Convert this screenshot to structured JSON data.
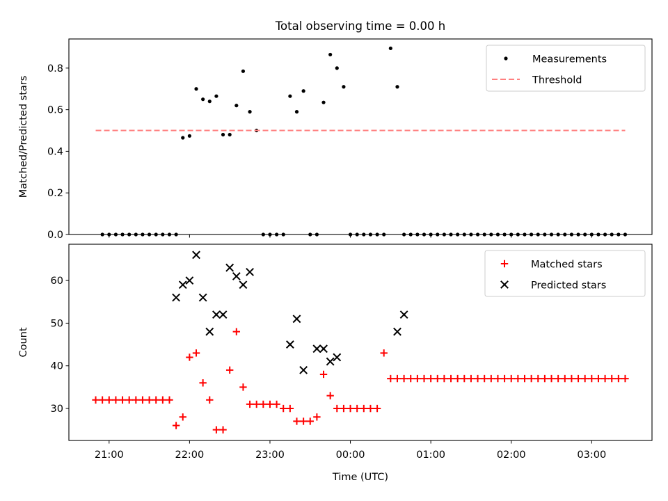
{
  "title": "Total observing time = 0.00 h",
  "chart_data": [
    {
      "type": "scatter",
      "panel": "top",
      "ylabel": "Matched/Predicted stars",
      "ylim": [
        0,
        0.94
      ],
      "yticks": [
        0.0,
        0.2,
        0.4,
        0.6,
        0.8
      ],
      "ytick_labels": [
        "0.0",
        "0.2",
        "0.4",
        "0.6",
        "0.8"
      ],
      "legend": {
        "position": "top-right",
        "entries": [
          {
            "label": "Measurements",
            "series": "measurements"
          },
          {
            "label": "Threshold",
            "series": "threshold"
          }
        ]
      },
      "series": [
        {
          "name": "Measurements",
          "key": "measurements",
          "style": "dot",
          "color": "#000000",
          "x": [
            "20:55",
            "21:00",
            "21:05",
            "21:10",
            "21:15",
            "21:20",
            "21:25",
            "21:30",
            "21:35",
            "21:40",
            "21:45",
            "21:50",
            "21:55",
            "22:00",
            "22:05",
            "22:10",
            "22:15",
            "22:20",
            "22:25",
            "22:30",
            "22:35",
            "22:40",
            "22:45",
            "22:50",
            "22:55",
            "23:00",
            "23:05",
            "23:10",
            "23:15",
            "23:20",
            "23:25",
            "23:30",
            "23:35",
            "23:40",
            "23:45",
            "23:50",
            "23:55",
            "00:00",
            "00:05",
            "00:10",
            "00:15",
            "00:20",
            "00:25",
            "00:30",
            "00:35",
            "00:40",
            "00:45",
            "00:50",
            "00:55",
            "01:00",
            "01:05",
            "01:10",
            "01:15",
            "01:20",
            "01:25",
            "01:30",
            "01:35",
            "01:40",
            "01:45",
            "01:50",
            "01:55",
            "02:00",
            "02:05",
            "02:10",
            "02:15",
            "02:20",
            "02:25",
            "02:30",
            "02:35",
            "02:40",
            "02:45",
            "02:50",
            "02:55",
            "03:00",
            "03:05",
            "03:10",
            "03:15",
            "03:20",
            "03:25"
          ],
          "y": [
            0,
            0,
            0,
            0,
            0,
            0,
            0,
            0,
            0,
            0,
            0,
            0,
            0.465,
            0.474,
            0.7,
            0.65,
            0.64,
            0.665,
            0.48,
            0.48,
            0.62,
            0.785,
            0.59,
            0.5,
            0,
            0,
            0,
            0,
            0.665,
            0.59,
            0.69,
            0,
            0,
            0.635,
            0.865,
            0.8,
            0.71,
            0,
            0,
            0,
            0,
            0,
            0,
            0.895,
            0.71,
            0,
            0,
            0,
            0,
            0,
            0,
            0,
            0,
            0,
            0,
            0,
            0,
            0,
            0,
            0,
            0,
            0,
            0,
            0,
            0,
            0,
            0,
            0,
            0,
            0,
            0,
            0,
            0,
            0,
            0,
            0,
            0,
            0,
            0
          ]
        },
        {
          "name": "Threshold",
          "key": "threshold",
          "style": "dashed-line",
          "color": "#ff8080",
          "x": [
            "20:50",
            "03:25"
          ],
          "y": [
            0.5,
            0.5
          ]
        }
      ]
    },
    {
      "type": "scatter",
      "panel": "bottom",
      "ylabel": "Count",
      "xlabel": "Time (UTC)",
      "ylim": [
        22.5,
        68.5
      ],
      "yticks": [
        30,
        40,
        50,
        60
      ],
      "ytick_labels": [
        "30",
        "40",
        "50",
        "60"
      ],
      "xlim": [
        "20:30",
        "03:45"
      ],
      "xticks": [
        "21:00",
        "22:00",
        "23:00",
        "00:00",
        "01:00",
        "02:00",
        "03:00"
      ],
      "xtick_labels": [
        "21:00",
        "22:00",
        "23:00",
        "00:00",
        "01:00",
        "02:00",
        "03:00"
      ],
      "legend": {
        "position": "top-right",
        "entries": [
          {
            "label": "Matched stars",
            "series": "matched"
          },
          {
            "label": "Predicted stars",
            "series": "predicted"
          }
        ]
      },
      "series": [
        {
          "name": "Matched stars",
          "key": "matched",
          "style": "plus",
          "color": "#ff0000",
          "x": [
            "20:50",
            "20:55",
            "21:00",
            "21:05",
            "21:10",
            "21:15",
            "21:20",
            "21:25",
            "21:30",
            "21:35",
            "21:40",
            "21:45",
            "21:50",
            "21:55",
            "22:00",
            "22:05",
            "22:10",
            "22:15",
            "22:20",
            "22:25",
            "22:30",
            "22:35",
            "22:40",
            "22:45",
            "22:50",
            "22:55",
            "23:00",
            "23:05",
            "23:10",
            "23:15",
            "23:20",
            "23:25",
            "23:30",
            "23:35",
            "23:40",
            "23:45",
            "23:50",
            "23:55",
            "00:00",
            "00:05",
            "00:10",
            "00:15",
            "00:20",
            "00:25",
            "00:30",
            "00:35",
            "00:40",
            "00:45",
            "00:50",
            "00:55",
            "01:00",
            "01:05",
            "01:10",
            "01:15",
            "01:20",
            "01:25",
            "01:30",
            "01:35",
            "01:40",
            "01:45",
            "01:50",
            "01:55",
            "02:00",
            "02:05",
            "02:10",
            "02:15",
            "02:20",
            "02:25",
            "02:30",
            "02:35",
            "02:40",
            "02:45",
            "02:50",
            "02:55",
            "03:00",
            "03:05",
            "03:10",
            "03:15",
            "03:20",
            "03:25"
          ],
          "y": [
            32,
            32,
            32,
            32,
            32,
            32,
            32,
            32,
            32,
            32,
            32,
            32,
            26,
            28,
            42,
            43,
            36,
            32,
            25,
            25,
            39,
            48,
            35,
            31,
            31,
            31,
            31,
            31,
            30,
            30,
            27,
            27,
            27,
            28,
            38,
            33,
            30,
            30,
            30,
            30,
            30,
            30,
            30,
            43,
            37,
            37,
            37,
            37,
            37,
            37,
            37,
            37,
            37,
            37,
            37,
            37,
            37,
            37,
            37,
            37,
            37,
            37,
            37,
            37,
            37,
            37,
            37,
            37,
            37,
            37,
            37,
            37,
            37,
            37,
            37,
            37,
            37,
            37,
            37,
            37
          ]
        },
        {
          "name": "Predicted stars",
          "key": "predicted",
          "style": "x",
          "color": "#000000",
          "x": [
            "21:50",
            "21:55",
            "22:00",
            "22:05",
            "22:10",
            "22:15",
            "22:20",
            "22:25",
            "22:30",
            "22:35",
            "22:40",
            "22:45",
            "23:15",
            "23:20",
            "23:25",
            "23:35",
            "23:40",
            "23:45",
            "23:50",
            "00:35",
            "00:40"
          ],
          "y": [
            56,
            59,
            60,
            66,
            56,
            48,
            52,
            52,
            63,
            61,
            59,
            62,
            45,
            51,
            39,
            44,
            44,
            41,
            42,
            48,
            52
          ]
        }
      ]
    }
  ]
}
